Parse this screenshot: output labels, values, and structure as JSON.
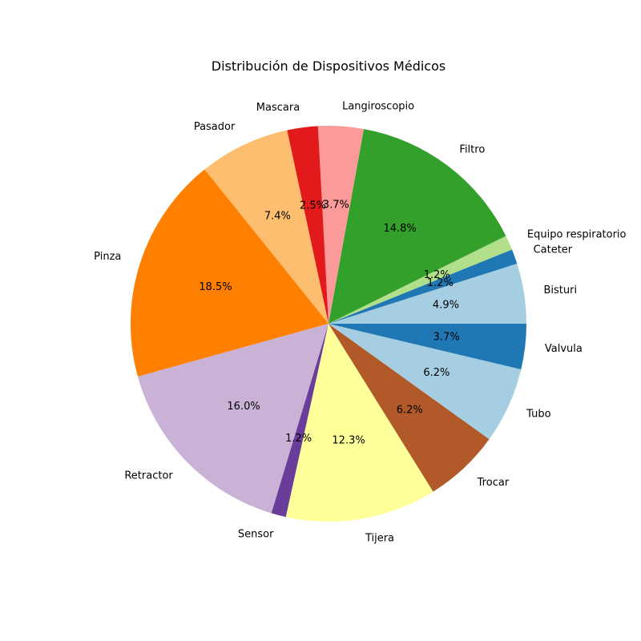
{
  "chart_data": {
    "type": "pie",
    "title": "Distribución de Dispositivos Médicos",
    "start_angle_deg": 0,
    "direction": "counterclockwise",
    "slices": [
      {
        "label": "Bisturi",
        "value": 4.9,
        "pct_label": "4.9%",
        "color": "#a6cee3"
      },
      {
        "label": "Cateter",
        "value": 1.2,
        "pct_label": "1.2%",
        "color": "#1f78b4"
      },
      {
        "label": "Equipo respiratorio",
        "value": 1.2,
        "pct_label": "1.2%",
        "color": "#b2df8a"
      },
      {
        "label": "Filtro",
        "value": 14.8,
        "pct_label": "14.8%",
        "color": "#33a02c"
      },
      {
        "label": "Langiroscopio",
        "value": 3.7,
        "pct_label": "3.7%",
        "color": "#fb9a99"
      },
      {
        "label": "Mascara",
        "value": 2.5,
        "pct_label": "2.5%",
        "color": "#e31a1c"
      },
      {
        "label": "Pasador",
        "value": 7.4,
        "pct_label": "7.4%",
        "color": "#fdbf6f"
      },
      {
        "label": "Pinza",
        "value": 18.5,
        "pct_label": "18.5%",
        "color": "#ff7f00"
      },
      {
        "label": "Retractor",
        "value": 16.0,
        "pct_label": "16.0%",
        "color": "#cab2d6"
      },
      {
        "label": "Sensor",
        "value": 1.2,
        "pct_label": "1.2%",
        "color": "#6a3d9a"
      },
      {
        "label": "Tijera",
        "value": 12.3,
        "pct_label": "12.3%",
        "color": "#ffff99"
      },
      {
        "label": "Trocar",
        "value": 6.2,
        "pct_label": "6.2%",
        "color": "#b15928"
      },
      {
        "label": "Tubo",
        "value": 6.2,
        "pct_label": "6.2%",
        "color": "#a6cee3"
      },
      {
        "label": "Valvula",
        "value": 3.7,
        "pct_label": "3.7%",
        "color": "#1f78b4"
      }
    ]
  }
}
